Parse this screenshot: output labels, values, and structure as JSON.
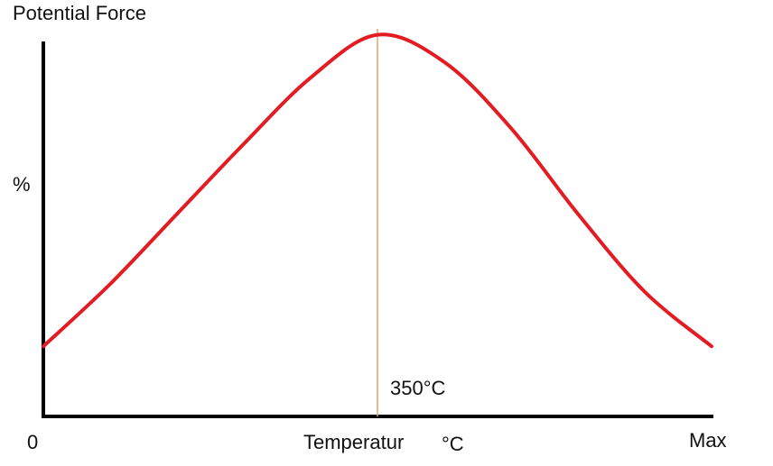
{
  "chart_data": {
    "type": "line",
    "title": "",
    "ylabel_top": "Potential Force",
    "ylabel_unit": "%",
    "xlabel": "Temperatur",
    "xlabel_unit": "°C",
    "x_tick_labels": [
      "0",
      "Max"
    ],
    "annotation": {
      "label": "350°C",
      "x_fraction": 0.5,
      "style": "vertical-line",
      "color": "#e8a36a"
    },
    "series": [
      {
        "values_fraction": [
          {
            "x": 0.0,
            "y": 0.18
          },
          {
            "x": 0.1,
            "y": 0.34
          },
          {
            "x": 0.2,
            "y": 0.52
          },
          {
            "x": 0.3,
            "y": 0.7
          },
          {
            "x": 0.4,
            "y": 0.87
          },
          {
            "x": 0.5,
            "y": 0.98
          },
          {
            "x": 0.6,
            "y": 0.91
          },
          {
            "x": 0.7,
            "y": 0.74
          },
          {
            "x": 0.8,
            "y": 0.52
          },
          {
            "x": 0.9,
            "y": 0.32
          },
          {
            "x": 1.0,
            "y": 0.18
          }
        ],
        "color": "#e31b23"
      }
    ],
    "axes_color": "#000000",
    "grid": false,
    "legend": "none"
  }
}
